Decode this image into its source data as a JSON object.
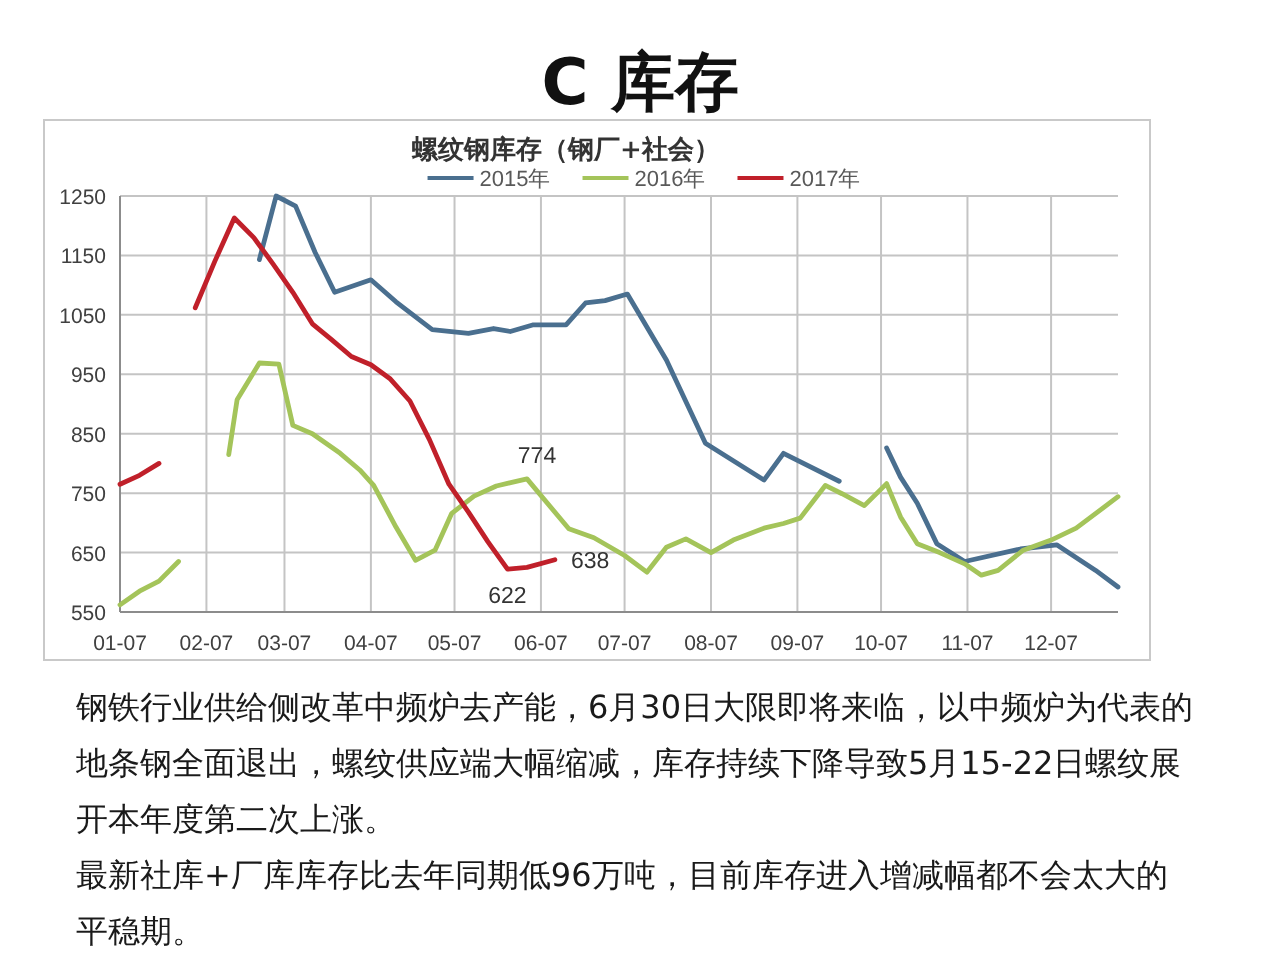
{
  "chart_data": {
    "type": "line",
    "title": "C 库存",
    "subtitle": "螺纹钢库存（钢厂+社会）",
    "xlim": [
      "--01-07",
      "--12-31"
    ],
    "xticks": [
      {
        "value": "--01-07",
        "label": "01-07"
      },
      {
        "value": "--02-07",
        "label": "02-07"
      },
      {
        "value": "--03-07",
        "label": "03-07"
      },
      {
        "value": "--04-07",
        "label": "04-07"
      },
      {
        "value": "--05-07",
        "label": "05-07"
      },
      {
        "value": "--06-07",
        "label": "06-07"
      },
      {
        "value": "--07-07",
        "label": "07-07"
      },
      {
        "value": "--08-07",
        "label": "08-07"
      },
      {
        "value": "--09-07",
        "label": "09-07"
      },
      {
        "value": "--10-07",
        "label": "10-07"
      },
      {
        "value": "--11-07",
        "label": "11-07"
      },
      {
        "value": "--12-07",
        "label": "12-07"
      }
    ],
    "ylim": [
      550,
      1250
    ],
    "yticks": [
      550,
      650,
      750,
      850,
      950,
      1050,
      1150,
      1250
    ],
    "grid": true,
    "legend": "top",
    "series": [
      {
        "name": "2015年",
        "color": "#4a6f8f",
        "x": [
          "--02-26",
          "--03-04",
          "--03-11",
          "--03-18",
          "--03-25",
          "--04-07",
          "--04-16",
          "--04-29",
          "--05-12",
          "--05-21",
          "--05-27",
          "--06-04",
          "--06-16",
          "--06-23",
          "--06-30",
          "--07-08",
          "--07-22",
          "--08-05",
          "--08-26",
          "--09-02",
          "--09-22",
          "--10-01",
          "--10-09",
          "--10-14",
          "--10-20",
          "--10-27",
          "--11-06",
          "--11-26",
          "--12-09",
          "--12-23",
          "--12-31"
        ],
        "values": [
          1143,
          1250,
          1233,
          1155,
          1088,
          1109,
          1072,
          1025,
          1019,
          1027,
          1022,
          1033,
          1033,
          1070,
          1074,
          1085,
          974,
          834,
          772,
          817,
          770,
          null,
          826,
          777,
          733,
          665,
          635,
          656,
          663,
          620,
          592
        ]
      },
      {
        "name": "2016年",
        "color": "#a4c45a",
        "x": [
          "--01-07",
          "--01-14",
          "--01-21",
          "--01-28",
          "--02-07",
          "--02-15",
          "--02-18",
          "--02-26",
          "--03-05",
          "--03-10",
          "--03-17",
          "--03-27",
          "--04-03",
          "--04-08",
          "--04-16",
          "--04-23",
          "--04-30",
          "--05-06",
          "--05-14",
          "--05-22",
          "--06-02",
          "--06-17",
          "--06-26",
          "--07-07",
          "--07-15",
          "--07-22",
          "--07-29",
          "--08-07",
          "--08-15",
          "--08-26",
          "--09-02",
          "--09-08",
          "--09-17",
          "--09-23",
          "--10-01",
          "--10-09",
          "--10-14",
          "--10-20",
          "--10-28",
          "--11-06",
          "--11-12",
          "--11-18",
          "--11-27",
          "--12-07",
          "--12-16",
          "--12-31"
        ],
        "values": [
          562,
          585,
          602,
          635,
          null,
          815,
          907,
          969,
          967,
          864,
          850,
          817,
          789,
          763,
          693,
          637,
          654,
          716,
          745,
          762,
          774,
          690,
          675,
          645,
          617,
          659,
          673,
          650,
          671,
          691,
          699,
          708,
          763,
          749,
          729,
          766,
          710,
          665,
          650,
          631,
          612,
          620,
          654,
          671,
          691,
          744
        ],
        "value_labels": [
          null,
          null,
          null,
          null,
          null,
          null,
          null,
          null,
          null,
          null,
          null,
          null,
          null,
          null,
          null,
          null,
          null,
          null,
          null,
          null,
          "774",
          null,
          null,
          null,
          null,
          null,
          null,
          null,
          null,
          null,
          null,
          null,
          null,
          null,
          null,
          null,
          null,
          null,
          null,
          null,
          null,
          null,
          null,
          null,
          null,
          null
        ]
      },
      {
        "name": "2017年",
        "color": "#c0202a",
        "x": [
          "--01-07",
          "--01-14",
          "--01-21",
          "--01-28",
          "--02-03",
          "--02-10",
          "--02-17",
          "--02-24",
          "--03-03",
          "--03-10",
          "--03-17",
          "--03-24",
          "--03-31",
          "--04-07",
          "--04-14",
          "--04-21",
          "--04-28",
          "--05-05",
          "--05-12",
          "--05-19",
          "--05-26",
          "--06-02",
          "--06-12"
        ],
        "values": [
          765,
          780,
          800,
          null,
          1062,
          1140,
          1213,
          1180,
          1135,
          1088,
          1035,
          1008,
          980,
          966,
          942,
          905,
          840,
          765,
          718,
          668,
          622,
          625,
          638
        ],
        "value_labels": [
          null,
          null,
          null,
          null,
          null,
          null,
          null,
          null,
          null,
          null,
          null,
          null,
          null,
          null,
          null,
          null,
          null,
          null,
          null,
          null,
          "622",
          null,
          "638"
        ]
      }
    ],
    "annotations": [
      "钢铁行业供给侧改革中频炉去产能，6月30日大限即将来临，以中频炉为代表的地条钢全面退出，螺纹供应端大幅缩减，库存持续下降导致5月15-22日螺纹展开本年度第二次上涨。",
      "最新社库+厂库库存比去年同期低96万吨，目前库存进入增减幅都不会太大的平稳期。"
    ]
  }
}
